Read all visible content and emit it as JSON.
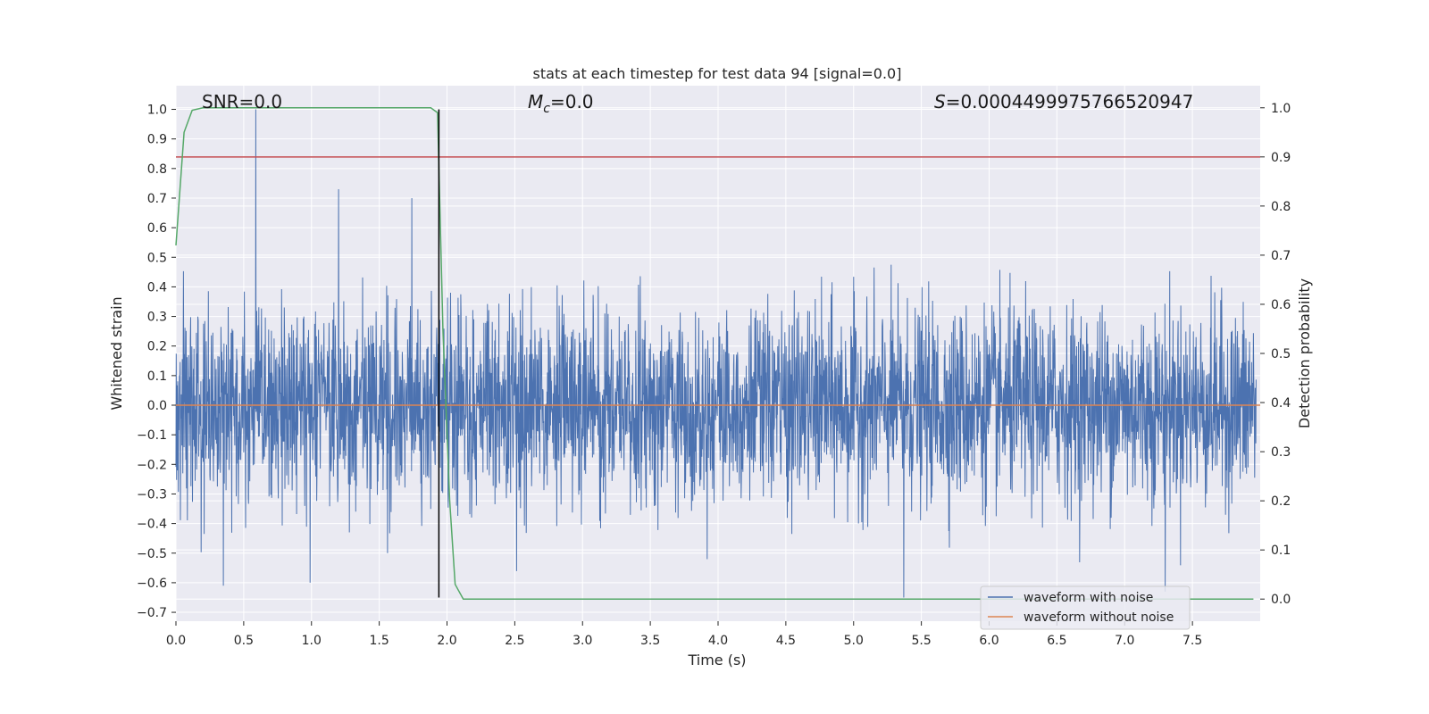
{
  "chart_data": {
    "type": "line",
    "title": "stats at each timestep for test data 94 [signal=0.0]",
    "xlabel": "Time (s)",
    "ylabel_left": "Whitened strain",
    "ylabel_right": "Detection probability",
    "xlim": [
      0.0,
      8.0
    ],
    "ylim_left": [
      -0.73,
      1.08
    ],
    "ylim_right": [
      -0.045,
      1.045
    ],
    "x_ticks": [
      0.0,
      0.5,
      1.0,
      1.5,
      2.0,
      2.5,
      3.0,
      3.5,
      4.0,
      4.5,
      5.0,
      5.5,
      6.0,
      6.5,
      7.0,
      7.5
    ],
    "x_tick_labels": [
      "0.0",
      "0.5",
      "1.0",
      "1.5",
      "2.0",
      "2.5",
      "3.0",
      "3.5",
      "4.0",
      "4.5",
      "5.0",
      "5.5",
      "6.0",
      "6.5",
      "7.0",
      "7.5"
    ],
    "y_left_ticks": [
      -0.7,
      -0.6,
      -0.5,
      -0.4,
      -0.3,
      -0.2,
      -0.1,
      0.0,
      0.1,
      0.2,
      0.3,
      0.4,
      0.5,
      0.6,
      0.7,
      0.8,
      0.9,
      1.0
    ],
    "y_left_tick_labels": [
      "−0.7",
      "−0.6",
      "−0.5",
      "−0.4",
      "−0.3",
      "−0.2",
      "−0.1",
      "0.0",
      "0.1",
      "0.2",
      "0.3",
      "0.4",
      "0.5",
      "0.6",
      "0.7",
      "0.8",
      "0.9",
      "1.0"
    ],
    "y_right_ticks": [
      0.0,
      0.1,
      0.2,
      0.3,
      0.4,
      0.5,
      0.6,
      0.7,
      0.8,
      0.9,
      1.0
    ],
    "y_right_tick_labels": [
      "0.0",
      "0.1",
      "0.2",
      "0.3",
      "0.4",
      "0.5",
      "0.6",
      "0.7",
      "0.8",
      "0.9",
      "1.0"
    ],
    "grid": true,
    "legend_placement": "lower-right",
    "annotations": {
      "snr": "SNR=0.0",
      "mc_symbol": "M",
      "mc_subscript": "c",
      "mc_value": "=0.0",
      "s_symbol": "S",
      "s_value": "=0.0004499975766520947"
    },
    "series": [
      {
        "name": "waveform with noise",
        "axis": "left",
        "color": "#4c72b0",
        "description_of_values": "dense noise trace",
        "amplitude_range": [
          -0.66,
          1.0
        ],
        "peaks": [
          {
            "x": 0.59,
            "y": 1.0
          },
          {
            "x": 0.99,
            "y": 0.71
          },
          {
            "x": 1.2,
            "y": 0.73
          },
          {
            "x": 1.74,
            "y": 0.7
          },
          {
            "x": 0.35,
            "y": -0.61
          },
          {
            "x": 0.99,
            "y": -0.6
          },
          {
            "x": 5.37,
            "y": -0.65
          },
          {
            "x": 7.3,
            "y": -0.63
          }
        ]
      },
      {
        "name": "waveform without noise",
        "axis": "left",
        "color": "#dd8452",
        "x": [
          0.0,
          8.0
        ],
        "y": [
          0.0,
          0.0
        ]
      },
      {
        "name": "detection probability",
        "axis": "right",
        "color": "#55a868",
        "x": [
          0.0,
          0.06,
          0.12,
          0.2,
          0.3,
          0.5,
          1.0,
          1.5,
          1.88,
          1.93,
          1.97,
          2.02,
          2.06,
          2.08,
          2.12,
          2.5,
          3.0,
          4.0,
          5.0,
          6.0,
          7.0,
          7.95
        ],
        "y": [
          0.72,
          0.95,
          0.995,
          1.0,
          1.0,
          1.0,
          1.0,
          1.0,
          1.0,
          0.99,
          0.55,
          0.2,
          0.03,
          0.02,
          0.0,
          0.0,
          0.0,
          0.0,
          0.0,
          0.0,
          0.0,
          0.0
        ]
      }
    ],
    "threshold_line": {
      "axis": "right",
      "y": 0.9,
      "color": "#c44e52"
    },
    "vertical_marker": {
      "x": 1.94,
      "y_from": -0.65,
      "y_to": 1.0,
      "color": "#000000"
    }
  }
}
